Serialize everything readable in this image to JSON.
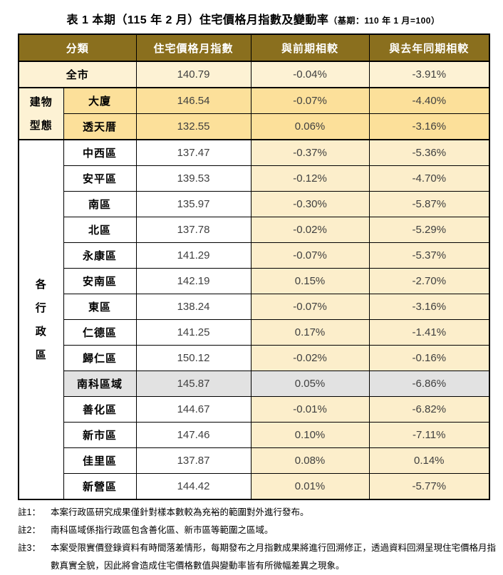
{
  "title": {
    "main": "表 1 本期（115 年 2 月）住宅價格月指數及變動率",
    "suffix": "（基期：110 年 1 月=100）"
  },
  "table": {
    "headers": [
      "分類",
      "住宅價格月指數",
      "與前期相較",
      "與去年同期相較"
    ],
    "groups": {
      "building": {
        "lines": [
          "建物",
          "型態"
        ],
        "rowspan": 2
      },
      "district": {
        "lines": [
          "各",
          "行",
          "政",
          "區"
        ],
        "rowspan": 14
      }
    },
    "rows": [
      {
        "name": "全市",
        "index": "140.79",
        "mom": "-0.04%",
        "yoy": "-3.91%",
        "style": "citywide",
        "span": 2,
        "sep": true
      },
      {
        "name": "大廈",
        "index": "146.54",
        "mom": "-0.07%",
        "yoy": "-4.40%",
        "style": "building",
        "group": "building",
        "sep": true
      },
      {
        "name": "透天厝",
        "index": "132.55",
        "mom": "0.06%",
        "yoy": "-3.16%",
        "style": "building"
      },
      {
        "name": "中西區",
        "index": "137.47",
        "mom": "-0.37%",
        "yoy": "-5.36%",
        "style": "district",
        "group": "district",
        "sep": true
      },
      {
        "name": "安平區",
        "index": "139.53",
        "mom": "-0.12%",
        "yoy": "-4.70%",
        "style": "district"
      },
      {
        "name": "南區",
        "index": "135.97",
        "mom": "-0.30%",
        "yoy": "-5.87%",
        "style": "district"
      },
      {
        "name": "北區",
        "index": "137.78",
        "mom": "-0.02%",
        "yoy": "-5.29%",
        "style": "district"
      },
      {
        "name": "永康區",
        "index": "141.29",
        "mom": "-0.07%",
        "yoy": "-5.37%",
        "style": "district"
      },
      {
        "name": "安南區",
        "index": "142.19",
        "mom": "0.15%",
        "yoy": "-2.70%",
        "style": "district"
      },
      {
        "name": "東區",
        "index": "138.24",
        "mom": "-0.07%",
        "yoy": "-3.16%",
        "style": "district"
      },
      {
        "name": "仁德區",
        "index": "141.25",
        "mom": "0.17%",
        "yoy": "-1.41%",
        "style": "district"
      },
      {
        "name": "歸仁區",
        "index": "150.12",
        "mom": "-0.02%",
        "yoy": "-0.16%",
        "style": "district"
      },
      {
        "name": "南科區域",
        "index": "145.87",
        "mom": "0.05%",
        "yoy": "-6.86%",
        "style": "sciencepark"
      },
      {
        "name": "善化區",
        "index": "144.67",
        "mom": "-0.01%",
        "yoy": "-6.82%",
        "style": "district"
      },
      {
        "name": "新市區",
        "index": "147.46",
        "mom": "0.10%",
        "yoy": "-7.11%",
        "style": "district"
      },
      {
        "name": "佳里區",
        "index": "137.87",
        "mom": "0.08%",
        "yoy": "0.14%",
        "style": "district"
      },
      {
        "name": "新營區",
        "index": "144.42",
        "mom": "0.01%",
        "yoy": "-5.77%",
        "style": "district"
      }
    ]
  },
  "notes": [
    {
      "label": "註1：",
      "text": "本案行政區研究成果僅針對樣本數較為充裕的範圍對外進行發布。"
    },
    {
      "label": "註2：",
      "text": "南科區域係指行政區包含善化區、新市區等範圍之區域。"
    },
    {
      "label": "註3：",
      "text": "本案受限實價登錄資料有時間落差情形，每期發布之月指數成果將進行回溯修正，透過資料回溯呈現住宅價格月指數真實全貌，因此將會造成住宅價格數值與變動率皆有所微幅差異之現象。"
    }
  ],
  "colors": {
    "header_bg": "#8a6f1e",
    "citywide_bg": "#fdf2d4",
    "building_bg": "#fce09a",
    "district_pct_bg": "#fceecb",
    "sciencepark_bg": "#e2e2e2",
    "border": "#000000",
    "number_text": "#3f3f3f"
  }
}
